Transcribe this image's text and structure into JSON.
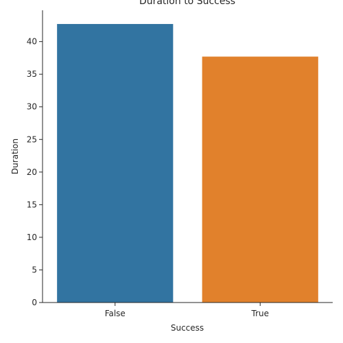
{
  "chart_data": {
    "type": "bar",
    "title": "Duration to Success",
    "xlabel": "Success",
    "ylabel": "Duration",
    "categories": [
      "False",
      "True"
    ],
    "values": [
      42.7,
      37.7
    ],
    "colors": [
      "#3274a1",
      "#e1812c"
    ],
    "ylim": [
      0,
      44.8
    ],
    "yticks": [
      0,
      5,
      10,
      15,
      20,
      25,
      30,
      35,
      40
    ],
    "grid": false,
    "legend": "none"
  }
}
